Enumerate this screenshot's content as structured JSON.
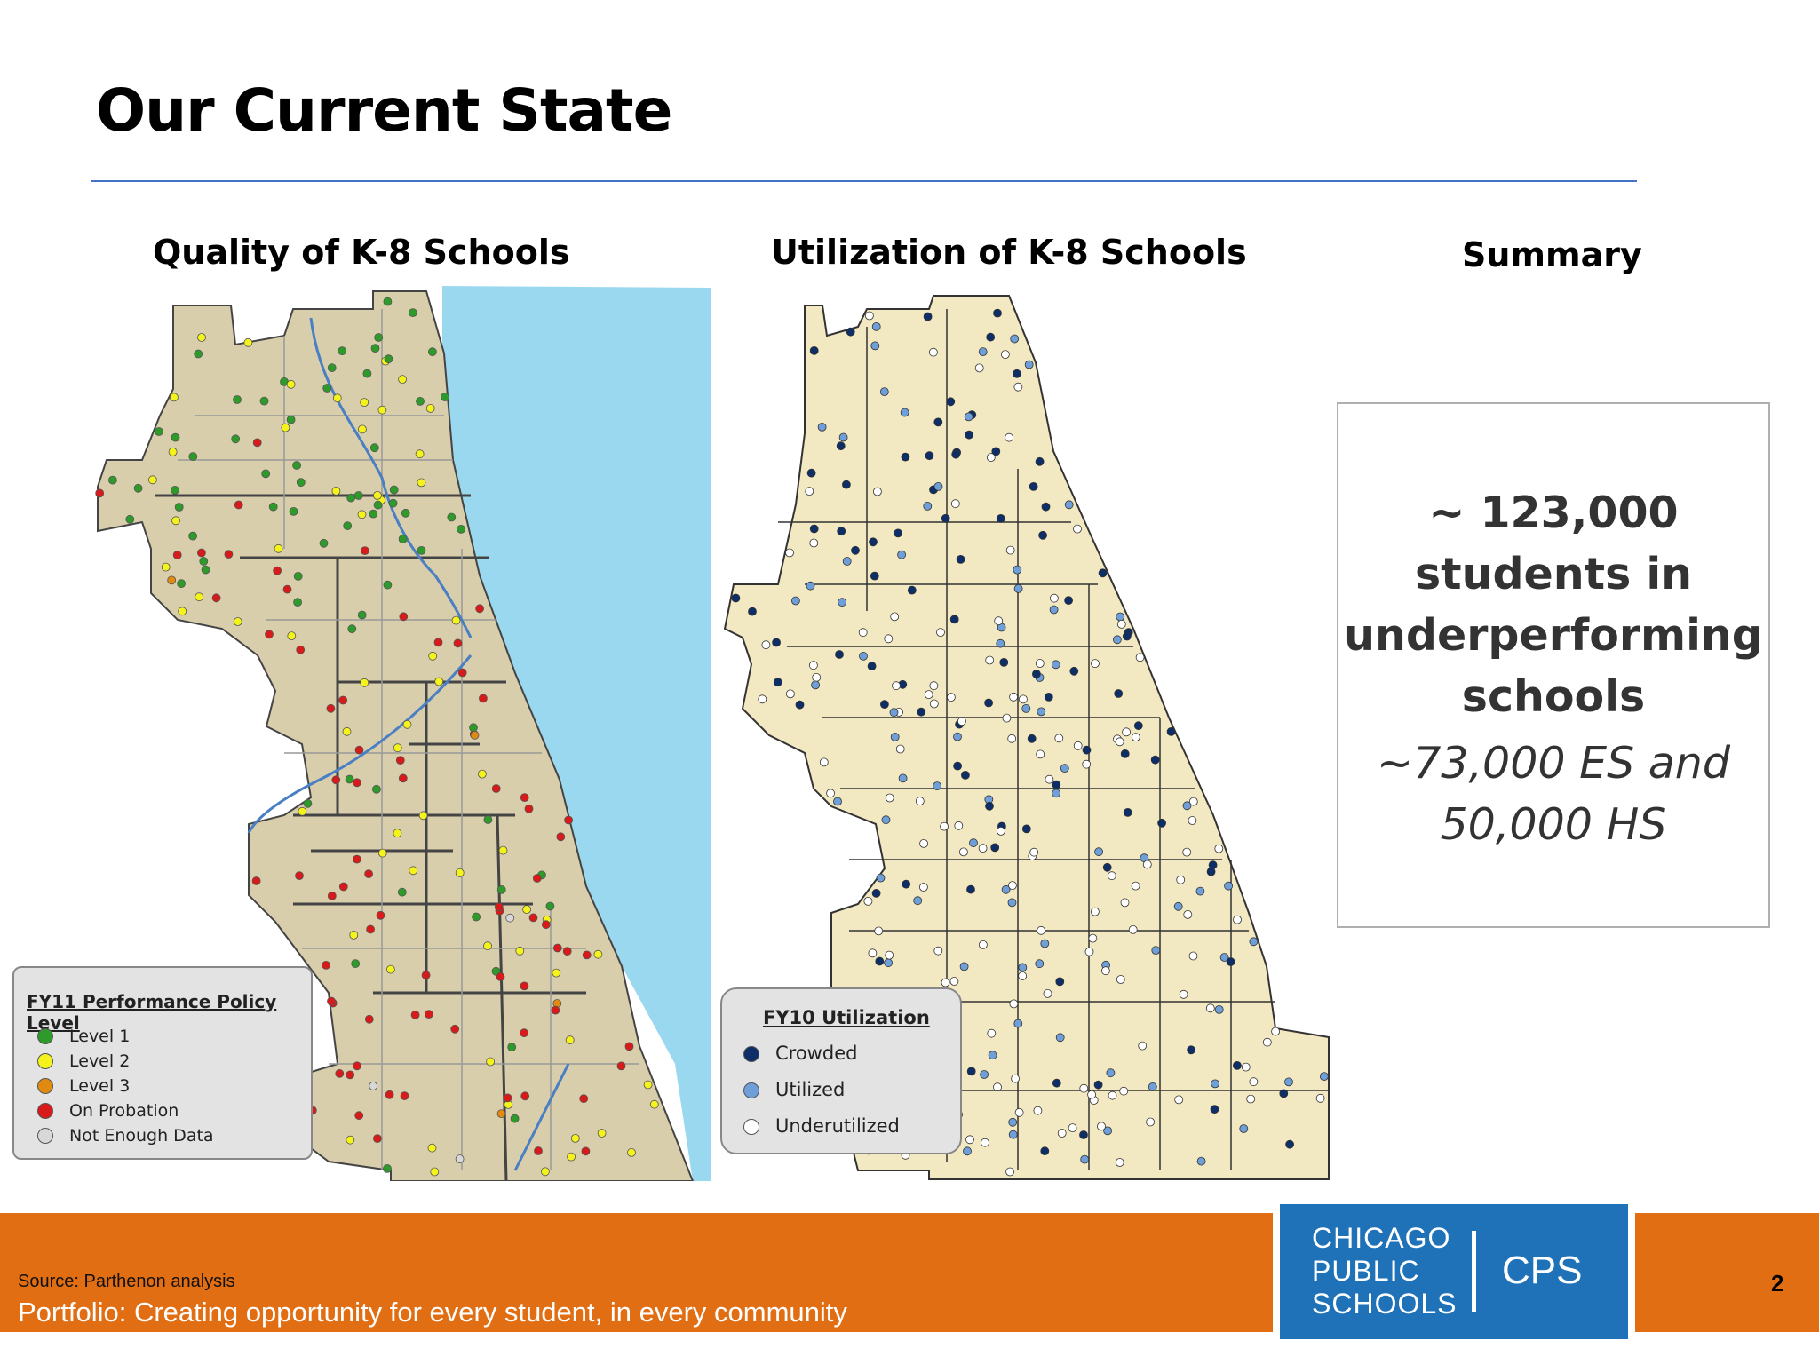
{
  "slide": {
    "title": "Our Current State",
    "page_number": "2"
  },
  "columns": {
    "quality_heading": "Quality of K-8 Schools",
    "utilization_heading": "Utilization of K-8 Schools",
    "summary_heading": "Summary"
  },
  "summary": {
    "main_lines": [
      "~ 123,000",
      "students in",
      "underperforming",
      "schools"
    ],
    "sub_lines": [
      "~73,000 ES and",
      "50,000 HS"
    ]
  },
  "legend_quality": {
    "title": "FY11 Performance Policy Level",
    "items": [
      {
        "label": "Level 1",
        "color": "#2e9a2a"
      },
      {
        "label": "Level 2",
        "color": "#f4f41c"
      },
      {
        "label": "Level 3",
        "color": "#e08a12"
      },
      {
        "label": "On Probation",
        "color": "#d81a1a"
      },
      {
        "label": "Not Enough Data",
        "color": "#d8d8d8"
      }
    ]
  },
  "legend_utilization": {
    "title": "FY10 Utilization",
    "items": [
      {
        "label": "Crowded",
        "color": "#0d2e66"
      },
      {
        "label": "Utilized",
        "color": "#6f9fd8"
      },
      {
        "label": "Underutilized",
        "color": "#ffffff"
      }
    ]
  },
  "colors": {
    "land": "#d9ceab",
    "lake": "#9ad8f0",
    "footer": "#e26e14",
    "logo_blue": "#1f72b8",
    "title_rule": "#4472c4"
  },
  "footer": {
    "source": "Source: Parthenon analysis",
    "tagline": "Portfolio: Creating opportunity for every student, in every community"
  },
  "logo": {
    "line1": "CHICAGO",
    "line2": "PUBLIC",
    "line3": "SCHOOLS",
    "abbr": "CPS"
  }
}
